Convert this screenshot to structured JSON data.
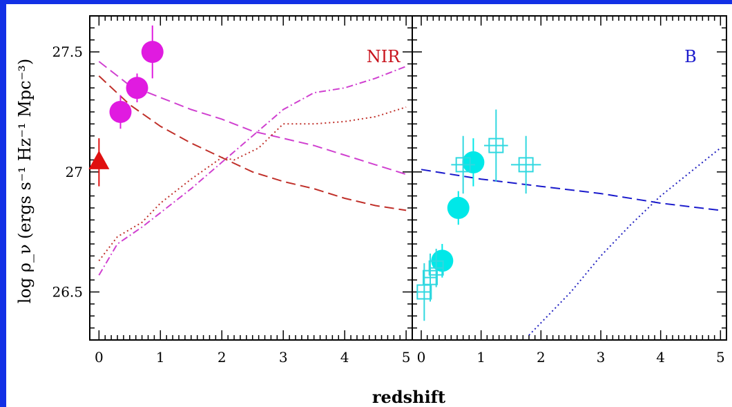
{
  "chart_data": [
    {
      "panel": "left",
      "type": "scatter",
      "label": "NIR",
      "label_color": "#c8141e",
      "xlabel": "redshift",
      "ylabel": "log ρ_ν (ergs s⁻¹ Hz⁻¹ Mpc⁻³)",
      "xlim": [
        -0.15,
        5.1
      ],
      "ylim": [
        26.3,
        27.65
      ],
      "xticks": [
        "0",
        "1",
        "2",
        "3",
        "4",
        "5"
      ],
      "yticks": [
        "26.5",
        "27",
        "27.5"
      ],
      "points": [
        {
          "marker": "circle",
          "color": "#e01be0",
          "x": 0.35,
          "y": 27.25,
          "yerr": 0.07
        },
        {
          "marker": "circle",
          "color": "#e01be0",
          "x": 0.62,
          "y": 27.35,
          "yerr": 0.06
        },
        {
          "marker": "circle",
          "color": "#e01be0",
          "x": 0.87,
          "y": 27.5,
          "yerr": 0.11
        },
        {
          "marker": "triangle",
          "color": "#e01010",
          "x": 0.0,
          "y": 27.04,
          "yerr": 0.1,
          "xerr": 0.04
        }
      ],
      "series": [
        {
          "color": "#c0302a",
          "dash": "long-dash",
          "x": [
            0,
            0.5,
            1,
            1.5,
            2,
            2.5,
            3,
            3.5,
            4,
            4.5,
            5
          ],
          "y": [
            27.4,
            27.28,
            27.19,
            27.12,
            27.06,
            27.0,
            26.96,
            26.93,
            26.89,
            26.86,
            26.84
          ]
        },
        {
          "color": "#d040d0",
          "dash": "long-dash",
          "x": [
            0,
            0.5,
            1,
            1.5,
            2,
            2.5,
            3,
            3.5,
            4,
            4.5,
            5
          ],
          "y": [
            27.46,
            27.36,
            27.31,
            27.26,
            27.22,
            27.17,
            27.14,
            27.11,
            27.07,
            27.03,
            26.99
          ]
        },
        {
          "color": "#c0302a",
          "dash": "dotted",
          "x": [
            0,
            0.3,
            0.7,
            1,
            1.5,
            2,
            2.2,
            2.6,
            3,
            3.5,
            4,
            4.5,
            5
          ],
          "y": [
            26.63,
            26.73,
            26.79,
            26.87,
            26.97,
            27.06,
            27.05,
            27.1,
            27.2,
            27.2,
            27.21,
            27.23,
            27.27
          ]
        },
        {
          "color": "#d040d0",
          "dash": "dash-dot",
          "x": [
            0,
            0.3,
            0.7,
            1,
            1.5,
            2,
            2.5,
            3,
            3.5,
            4,
            4.5,
            5
          ],
          "y": [
            26.57,
            26.7,
            26.77,
            26.83,
            26.93,
            27.04,
            27.15,
            27.26,
            27.33,
            27.35,
            27.39,
            27.44
          ]
        }
      ]
    },
    {
      "panel": "right",
      "type": "scatter",
      "label": "B",
      "label_color": "#1a1acc",
      "xlabel": "redshift",
      "xlim": [
        -0.15,
        5.1
      ],
      "ylim": [
        26.3,
        27.65
      ],
      "xticks": [
        "0",
        "1",
        "2",
        "3",
        "4",
        "5"
      ],
      "points": [
        {
          "marker": "circle",
          "color": "#00e8e8",
          "x": 0.35,
          "y": 26.63,
          "yerr": 0.07
        },
        {
          "marker": "circle",
          "color": "#00e8e8",
          "x": 0.62,
          "y": 26.85,
          "yerr": 0.07
        },
        {
          "marker": "circle",
          "color": "#00e8e8",
          "x": 0.87,
          "y": 27.04,
          "yerr": 0.1
        },
        {
          "marker": "open-square",
          "color": "#30d8e0",
          "x": 0.05,
          "y": 26.5,
          "yerr": 0.12,
          "xerr": 0.12
        },
        {
          "marker": "open-square",
          "color": "#30d8e0",
          "x": 0.15,
          "y": 26.56,
          "yerr": 0.1,
          "xerr": 0.12
        },
        {
          "marker": "open-square",
          "color": "#30d8e0",
          "x": 0.25,
          "y": 26.6,
          "yerr": 0.08,
          "xerr": 0.12
        },
        {
          "marker": "open-square",
          "color": "#30d8e0",
          "x": 0.7,
          "y": 27.03,
          "yerr": 0.12,
          "xerr": 0.2
        },
        {
          "marker": "open-square",
          "color": "#30d8e0",
          "x": 1.25,
          "y": 27.11,
          "yerr": 0.15,
          "xerr": 0.2
        },
        {
          "marker": "open-square",
          "color": "#30d8e0",
          "x": 1.75,
          "y": 27.03,
          "yerr": 0.12,
          "xerr": 0.25
        }
      ],
      "series": [
        {
          "color": "#1a1acc",
          "dash": "long-dash",
          "x": [
            0,
            1,
            2,
            3,
            4,
            5
          ],
          "y": [
            27.01,
            26.97,
            26.94,
            26.91,
            26.87,
            26.84
          ]
        },
        {
          "color": "#2020c0",
          "dash": "dotted",
          "x": [
            1.8,
            2.5,
            3,
            3.5,
            4,
            4.5,
            5
          ],
          "y": [
            26.32,
            26.5,
            26.65,
            26.78,
            26.9,
            27.0,
            27.1
          ]
        }
      ]
    }
  ]
}
